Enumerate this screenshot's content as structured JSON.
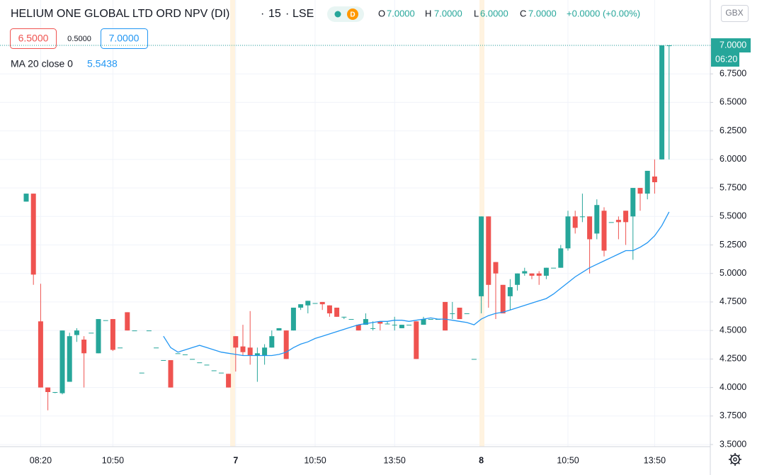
{
  "chart_data": {
    "type": "candlestick",
    "title": "HELIUM ONE GLOBAL LTD ORD NPV (DI)",
    "interval": "15",
    "exchange": "LSE",
    "badge": "D",
    "currency": "GBX",
    "header": {
      "o_label": "O",
      "open": "7.0000",
      "h_label": "H",
      "high": "7.0000",
      "l_label": "L",
      "low": "6.0000",
      "c_label": "C",
      "close": "7.0000",
      "change": "+0.0000 (+0.00%)"
    },
    "order": {
      "sell": "6.5000",
      "spread": "0.5000",
      "buy": "7.0000"
    },
    "last_price": {
      "label": "7.0000",
      "value": 7.0,
      "countdown": "06:20"
    },
    "up_color": "#26a69a",
    "down_color": "#ef5350",
    "categories": [
      null,
      null,
      "08:20",
      null,
      null,
      null,
      null,
      null,
      null,
      null,
      null,
      null,
      "10:50",
      null,
      null,
      null,
      null,
      null,
      null,
      null,
      null,
      null,
      null,
      null,
      null,
      null,
      null,
      null,
      null,
      "7",
      null,
      null,
      null,
      null,
      null,
      null,
      null,
      null,
      null,
      null,
      "10:50",
      null,
      null,
      null,
      null,
      null,
      null,
      null,
      null,
      null,
      null,
      "13:50",
      null,
      null,
      null,
      null,
      null,
      null,
      null,
      null,
      null,
      null,
      null,
      "8",
      null,
      null,
      null,
      null,
      null,
      null,
      null,
      null,
      null,
      null,
      null,
      "10:50",
      null,
      null,
      null,
      null,
      null,
      null,
      null,
      null,
      null,
      null,
      null,
      "13:50",
      null,
      null
    ],
    "open": [
      5.63,
      5.7,
      4.58,
      4.0,
      3.96,
      3.95,
      4.05,
      4.46,
      4.42,
      4.48,
      4.3,
      4.59,
      4.6,
      4.35,
      4.66,
      4.5,
      4.13,
      4.5,
      4.35,
      4.24,
      4.24,
      4.3,
      4.29,
      4.25,
      4.22,
      4.2,
      4.15,
      4.13,
      4.12,
      4.45,
      4.36,
      4.35,
      4.28,
      4.28,
      4.35,
      4.5,
      4.5,
      4.5,
      4.7,
      4.72,
      4.74,
      4.75,
      4.72,
      4.7,
      4.62,
      4.6,
      4.55,
      4.55,
      4.52,
      4.58,
      4.56,
      4.55,
      4.52,
      4.55,
      4.58,
      4.55,
      4.6,
      4.6,
      4.75,
      4.65,
      4.7,
      4.65,
      4.25,
      4.8,
      5.5,
      5.1,
      4.9,
      4.8,
      4.9,
      5.0,
      5.0,
      5.0,
      4.98,
      5.05,
      5.05,
      5.22,
      5.5,
      5.5,
      5.5,
      5.35,
      5.55,
      5.45,
      5.47,
      5.55,
      5.5,
      5.75,
      5.7,
      5.85,
      6.0,
      7.0
    ],
    "high": [
      5.7,
      5.7,
      4.91,
      4.0,
      3.96,
      4.5,
      4.48,
      4.52,
      4.45,
      4.48,
      4.6,
      4.59,
      4.6,
      4.35,
      4.66,
      4.5,
      4.13,
      4.5,
      4.35,
      4.24,
      4.24,
      4.3,
      4.29,
      4.25,
      4.22,
      4.2,
      4.15,
      4.13,
      4.12,
      4.45,
      4.55,
      4.67,
      4.35,
      4.38,
      4.5,
      4.52,
      4.5,
      4.7,
      4.73,
      4.76,
      4.74,
      4.75,
      4.72,
      4.7,
      4.62,
      4.6,
      4.55,
      4.65,
      4.58,
      4.58,
      4.58,
      4.62,
      4.55,
      4.55,
      4.58,
      4.62,
      4.6,
      4.6,
      4.75,
      4.75,
      4.7,
      4.65,
      4.25,
      5.5,
      5.5,
      5.1,
      4.9,
      4.95,
      5.0,
      5.05,
      5.0,
      5.02,
      5.05,
      5.05,
      5.25,
      5.55,
      5.55,
      5.7,
      5.5,
      5.65,
      5.58,
      5.45,
      5.5,
      5.55,
      5.75,
      5.75,
      5.9,
      6.0,
      7.0,
      7.0
    ],
    "low": [
      5.63,
      4.9,
      4.0,
      3.8,
      3.95,
      3.94,
      4.05,
      4.4,
      4.0,
      4.48,
      4.3,
      4.59,
      4.32,
      4.35,
      4.5,
      4.5,
      4.13,
      4.5,
      4.35,
      4.24,
      4.0,
      4.3,
      4.29,
      4.25,
      4.22,
      4.2,
      4.15,
      4.13,
      4.0,
      4.14,
      4.28,
      4.2,
      4.05,
      4.2,
      4.35,
      4.5,
      4.25,
      4.5,
      4.68,
      4.65,
      4.74,
      4.68,
      4.62,
      4.62,
      4.6,
      4.6,
      4.5,
      4.55,
      4.5,
      4.5,
      4.56,
      4.5,
      4.52,
      4.55,
      4.25,
      4.55,
      4.6,
      4.6,
      4.5,
      4.6,
      4.6,
      4.65,
      4.25,
      4.65,
      4.7,
      4.6,
      4.65,
      4.68,
      4.85,
      4.98,
      4.95,
      4.9,
      4.95,
      5.05,
      5.05,
      5.2,
      5.35,
      5.45,
      5.0,
      5.3,
      5.15,
      5.45,
      5.3,
      5.25,
      5.12,
      5.55,
      5.65,
      5.7,
      6.0,
      6.0
    ],
    "close": [
      5.7,
      4.99,
      4.0,
      3.96,
      3.96,
      4.5,
      4.45,
      4.5,
      4.3,
      4.48,
      4.6,
      4.59,
      4.33,
      4.35,
      4.5,
      4.5,
      4.13,
      4.5,
      4.35,
      4.24,
      4.0,
      4.3,
      4.29,
      4.25,
      4.22,
      4.2,
      4.15,
      4.13,
      4.0,
      4.35,
      4.31,
      4.28,
      4.3,
      4.35,
      4.45,
      4.52,
      4.25,
      4.7,
      4.73,
      4.76,
      4.74,
      4.73,
      4.65,
      4.62,
      4.62,
      4.6,
      4.5,
      4.6,
      4.52,
      4.56,
      4.56,
      4.55,
      4.55,
      4.55,
      4.25,
      4.6,
      4.6,
      4.6,
      4.5,
      4.65,
      4.6,
      4.65,
      4.25,
      5.5,
      4.9,
      5.0,
      4.65,
      4.88,
      5.0,
      5.02,
      4.98,
      4.98,
      5.05,
      5.05,
      5.22,
      5.5,
      5.4,
      5.5,
      5.3,
      5.6,
      5.2,
      5.45,
      5.45,
      5.45,
      5.75,
      5.7,
      5.9,
      5.8,
      7.0,
      7.0
    ],
    "series": [
      {
        "name": "MA 20 close 0",
        "current": "5.5438",
        "color": "#2196f3",
        "values": [
          null,
          null,
          null,
          null,
          null,
          null,
          null,
          null,
          null,
          null,
          null,
          null,
          null,
          null,
          null,
          null,
          null,
          null,
          null,
          4.45,
          4.35,
          4.31,
          4.33,
          4.35,
          4.37,
          4.35,
          4.33,
          4.31,
          4.3,
          4.29,
          4.28,
          4.28,
          4.28,
          4.28,
          4.28,
          4.29,
          4.31,
          4.35,
          4.38,
          4.4,
          4.43,
          4.45,
          4.47,
          4.49,
          4.51,
          4.53,
          4.55,
          4.56,
          4.57,
          4.58,
          4.58,
          4.59,
          4.59,
          4.58,
          4.59,
          4.6,
          4.61,
          4.6,
          4.6,
          4.59,
          4.58,
          4.57,
          4.55,
          4.6,
          4.63,
          4.65,
          4.66,
          4.68,
          4.7,
          4.72,
          4.74,
          4.76,
          4.78,
          4.82,
          4.87,
          4.92,
          4.97,
          5.01,
          5.05,
          5.08,
          5.11,
          5.14,
          5.17,
          5.2,
          5.2,
          5.23,
          5.27,
          5.33,
          5.42,
          5.54
        ]
      }
    ],
    "ylim": [
      3.5,
      7.0
    ],
    "yticks": [
      {
        "value": 3.5,
        "label": "3.5000"
      },
      {
        "value": 3.75,
        "label": "3.7500"
      },
      {
        "value": 4.0,
        "label": "4.0000"
      },
      {
        "value": 4.25,
        "label": "4.2500"
      },
      {
        "value": 4.5,
        "label": "4.5000"
      },
      {
        "value": 4.75,
        "label": "4.7500"
      },
      {
        "value": 5.0,
        "label": "5.0000"
      },
      {
        "value": 5.25,
        "label": "5.2500"
      },
      {
        "value": 5.5,
        "label": "5.5000"
      },
      {
        "value": 5.75,
        "label": "5.7500"
      },
      {
        "value": 6.0,
        "label": "6.0000"
      },
      {
        "value": 6.25,
        "label": "6.2500"
      },
      {
        "value": 6.5,
        "label": "6.5000"
      },
      {
        "value": 6.75,
        "label": "6.7500"
      },
      {
        "value": 7.0,
        "label": "7.0000"
      }
    ],
    "grid": true
  }
}
